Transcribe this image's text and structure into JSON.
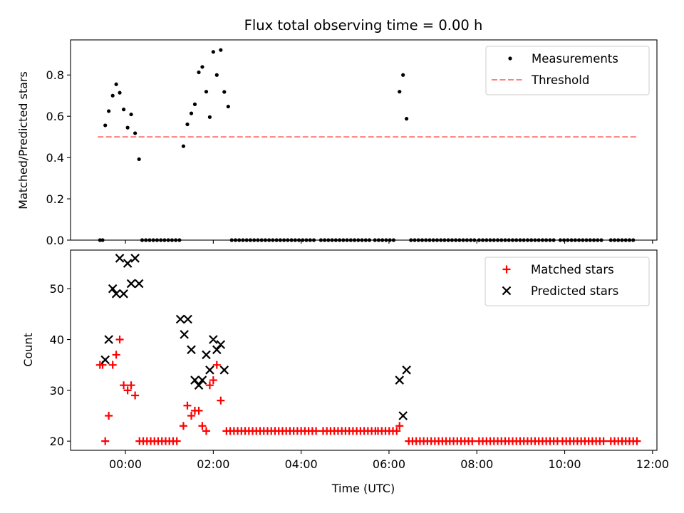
{
  "chart_data": [
    {
      "type": "scatter",
      "title": "Flux total observing time = 0.00 h",
      "xlabel": "",
      "ylabel": "Matched/Predicted stars",
      "xlim": [
        -1.25,
        12.1
      ],
      "ylim": [
        0,
        0.97
      ],
      "yticks": [
        0.0,
        0.2,
        0.4,
        0.6,
        0.8
      ],
      "ytick_labels": [
        "0.0",
        "0.2",
        "0.4",
        "0.6",
        "0.8"
      ],
      "legend": {
        "position": "top-right",
        "entries": [
          {
            "label": "Measurements",
            "marker": "dot",
            "color": "#000000"
          },
          {
            "label": "Threshold",
            "marker": "dashed-line",
            "color": "#ff7f7f"
          }
        ]
      },
      "threshold": {
        "value": 0.5,
        "x_range": [
          -0.63,
          11.65
        ],
        "color": "#ff7f7f"
      },
      "measurements": [
        {
          "x": -0.58,
          "y": 0.0
        },
        {
          "x": -0.52,
          "y": 0.0
        },
        {
          "x": -0.46,
          "y": 0.556
        },
        {
          "x": -0.38,
          "y": 0.625
        },
        {
          "x": -0.29,
          "y": 0.7
        },
        {
          "x": -0.21,
          "y": 0.755
        },
        {
          "x": -0.13,
          "y": 0.714
        },
        {
          "x": -0.04,
          "y": 0.633
        },
        {
          "x": 0.05,
          "y": 0.545
        },
        {
          "x": 0.13,
          "y": 0.609
        },
        {
          "x": 0.22,
          "y": 0.518
        },
        {
          "x": 0.31,
          "y": 0.392
        },
        {
          "x": 1.32,
          "y": 0.455
        },
        {
          "x": 1.41,
          "y": 0.561
        },
        {
          "x": 1.5,
          "y": 0.614
        },
        {
          "x": 1.58,
          "y": 0.658
        },
        {
          "x": 1.67,
          "y": 0.813
        },
        {
          "x": 1.75,
          "y": 0.839
        },
        {
          "x": 1.84,
          "y": 0.719
        },
        {
          "x": 1.92,
          "y": 0.596
        },
        {
          "x": 2.0,
          "y": 0.912
        },
        {
          "x": 2.08,
          "y": 0.8
        },
        {
          "x": 2.17,
          "y": 0.921
        },
        {
          "x": 2.25,
          "y": 0.718
        },
        {
          "x": 2.34,
          "y": 0.647
        },
        {
          "x": 6.24,
          "y": 0.719
        },
        {
          "x": 6.32,
          "y": 0.8
        },
        {
          "x": 6.4,
          "y": 0.588
        }
      ],
      "zero_runs": [
        {
          "from": 0.38,
          "to": 1.25,
          "step": 0.085
        },
        {
          "from": 2.42,
          "to": 4.35,
          "step": 0.085
        },
        {
          "from": 4.45,
          "to": 5.6,
          "step": 0.085
        },
        {
          "from": 5.68,
          "to": 6.18,
          "step": 0.085
        },
        {
          "from": 6.5,
          "to": 7.95,
          "step": 0.085
        },
        {
          "from": 8.05,
          "to": 9.8,
          "step": 0.085
        },
        {
          "from": 9.9,
          "to": 10.9,
          "step": 0.085
        },
        {
          "from": 11.05,
          "to": 11.62,
          "step": 0.085
        }
      ]
    },
    {
      "type": "scatter",
      "title": "",
      "xlabel": "Time (UTC)",
      "ylabel": "Count",
      "xlim": [
        -1.25,
        12.1
      ],
      "ylim": [
        18.2,
        57.6
      ],
      "yticks": [
        20,
        30,
        40,
        50
      ],
      "ytick_labels": [
        "20",
        "30",
        "40",
        "50"
      ],
      "xticks": [
        0,
        2,
        4,
        6,
        8,
        10,
        12
      ],
      "xtick_labels": [
        "00:00",
        "02:00",
        "04:00",
        "06:00",
        "08:00",
        "10:00",
        "12:00"
      ],
      "legend": {
        "position": "top-right",
        "entries": [
          {
            "label": "Matched stars",
            "marker": "plus",
            "color": "#ff0000"
          },
          {
            "label": "Predicted stars",
            "marker": "x",
            "color": "#000000"
          }
        ]
      },
      "matched": [
        {
          "x": -0.58,
          "y": 35
        },
        {
          "x": -0.52,
          "y": 35
        },
        {
          "x": -0.46,
          "y": 20
        },
        {
          "x": -0.38,
          "y": 25
        },
        {
          "x": -0.29,
          "y": 35
        },
        {
          "x": -0.21,
          "y": 37
        },
        {
          "x": -0.13,
          "y": 40
        },
        {
          "x": -0.04,
          "y": 31
        },
        {
          "x": 0.05,
          "y": 30
        },
        {
          "x": 0.13,
          "y": 31
        },
        {
          "x": 0.22,
          "y": 29
        },
        {
          "x": 1.32,
          "y": 23
        },
        {
          "x": 1.41,
          "y": 27
        },
        {
          "x": 1.5,
          "y": 25
        },
        {
          "x": 1.58,
          "y": 26
        },
        {
          "x": 1.67,
          "y": 26
        },
        {
          "x": 1.75,
          "y": 23
        },
        {
          "x": 1.84,
          "y": 22
        },
        {
          "x": 1.92,
          "y": 31
        },
        {
          "x": 2.0,
          "y": 32
        },
        {
          "x": 2.08,
          "y": 35
        },
        {
          "x": 2.17,
          "y": 28
        },
        {
          "x": 6.24,
          "y": 23
        }
      ],
      "predicted": [
        {
          "x": -0.46,
          "y": 36
        },
        {
          "x": -0.38,
          "y": 40
        },
        {
          "x": -0.29,
          "y": 50
        },
        {
          "x": -0.21,
          "y": 49
        },
        {
          "x": -0.13,
          "y": 56
        },
        {
          "x": -0.04,
          "y": 49
        },
        {
          "x": 0.05,
          "y": 55
        },
        {
          "x": 0.13,
          "y": 51
        },
        {
          "x": 0.22,
          "y": 56
        },
        {
          "x": 0.31,
          "y": 51
        },
        {
          "x": 1.25,
          "y": 44
        },
        {
          "x": 1.34,
          "y": 41
        },
        {
          "x": 1.42,
          "y": 44
        },
        {
          "x": 1.5,
          "y": 38
        },
        {
          "x": 1.58,
          "y": 32
        },
        {
          "x": 1.67,
          "y": 31
        },
        {
          "x": 1.75,
          "y": 32
        },
        {
          "x": 1.84,
          "y": 37
        },
        {
          "x": 1.92,
          "y": 34
        },
        {
          "x": 2.0,
          "y": 40
        },
        {
          "x": 2.08,
          "y": 38
        },
        {
          "x": 2.17,
          "y": 39
        },
        {
          "x": 2.25,
          "y": 34
        },
        {
          "x": 6.24,
          "y": 32
        },
        {
          "x": 6.32,
          "y": 25
        },
        {
          "x": 6.4,
          "y": 34
        }
      ],
      "matched_runs": [
        {
          "from": 0.32,
          "to": 1.25,
          "step": 0.085,
          "y": 20
        },
        {
          "from": 2.3,
          "to": 4.4,
          "step": 0.085,
          "y": 22
        },
        {
          "from": 4.5,
          "to": 5.7,
          "step": 0.085,
          "y": 22
        },
        {
          "from": 5.75,
          "to": 6.2,
          "step": 0.085,
          "y": 22
        },
        {
          "from": 6.45,
          "to": 7.95,
          "step": 0.085,
          "y": 20
        },
        {
          "from": 8.05,
          "to": 9.85,
          "step": 0.085,
          "y": 20
        },
        {
          "from": 9.95,
          "to": 10.9,
          "step": 0.085,
          "y": 20
        },
        {
          "from": 11.05,
          "to": 11.65,
          "step": 0.085,
          "y": 20
        }
      ]
    }
  ]
}
